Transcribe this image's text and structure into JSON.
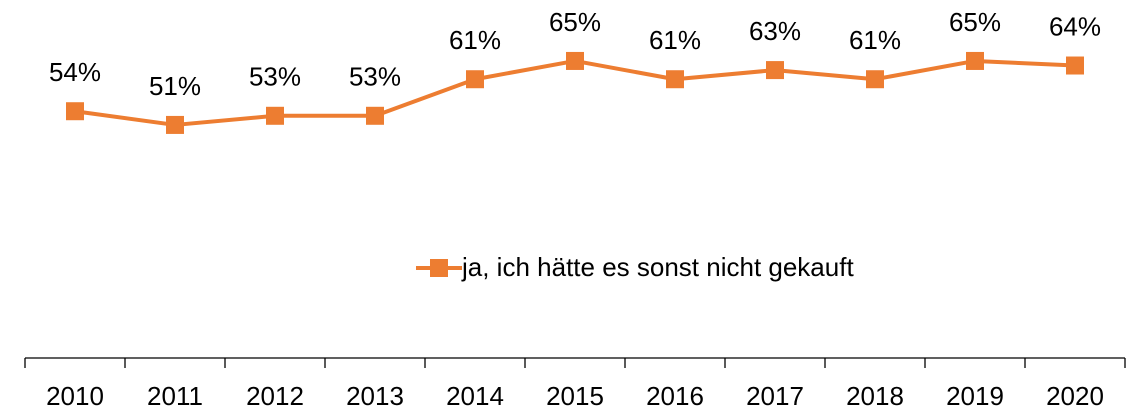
{
  "chart_data": {
    "type": "line",
    "categories": [
      "2010",
      "2011",
      "2012",
      "2013",
      "2014",
      "2015",
      "2016",
      "2017",
      "2018",
      "2019",
      "2020"
    ],
    "series": [
      {
        "name": "ja, ich hätte es sonst nicht gekauft",
        "color": "#ed7d31",
        "values": [
          54,
          51,
          53,
          53,
          61,
          65,
          61,
          63,
          61,
          65,
          64
        ],
        "value_labels": [
          "54%",
          "51%",
          "53%",
          "53%",
          "61%",
          "65%",
          "61%",
          "63%",
          "61%",
          "65%",
          "64%"
        ]
      }
    ],
    "ylim": [
      0,
      80
    ],
    "grid": false,
    "legend": "center"
  }
}
